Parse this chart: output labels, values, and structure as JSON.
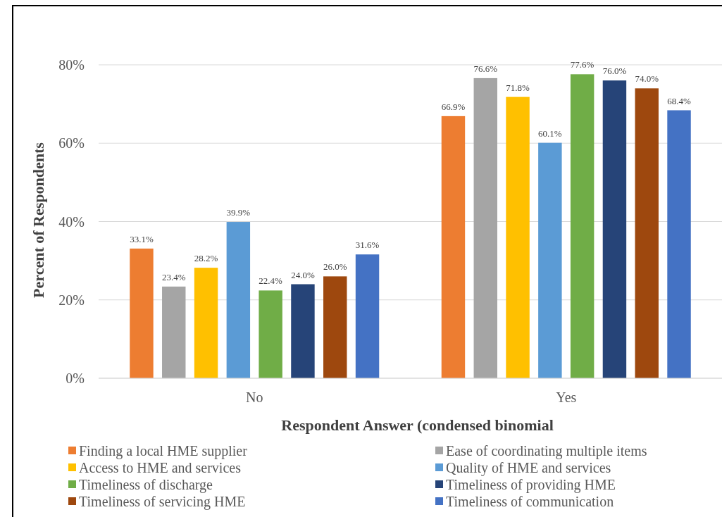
{
  "chart_data": {
    "type": "bar",
    "xlabel": "Respondent Answer (condensed binomial",
    "ylabel": "Percent of Respondents",
    "categories": [
      "No",
      "Yes"
    ],
    "ylim": [
      0,
      80
    ],
    "yticks": [
      {
        "value": 0,
        "label": "0%"
      },
      {
        "value": 20,
        "label": "20%"
      },
      {
        "value": 40,
        "label": "40%"
      },
      {
        "value": 60,
        "label": "60%"
      },
      {
        "value": 80,
        "label": "80%"
      }
    ],
    "grid": "y",
    "legend": "bottom",
    "series": [
      {
        "name": "Finding a local HME supplier",
        "color": "#ed7d31",
        "values": [
          33.1,
          66.9
        ],
        "value_labels": [
          "33.1%",
          "66.9%"
        ]
      },
      {
        "name": "Ease of coordinating multiple items",
        "color": "#a5a5a5",
        "values": [
          23.4,
          76.6
        ],
        "value_labels": [
          "23.4%",
          "76.6%"
        ]
      },
      {
        "name": "Access to HME and services",
        "color": "#ffc000",
        "values": [
          28.2,
          71.8
        ],
        "value_labels": [
          "28.2%",
          "71.8%"
        ]
      },
      {
        "name": "Quality of HME and services",
        "color": "#5b9bd5",
        "values": [
          39.9,
          60.1
        ],
        "value_labels": [
          "39.9%",
          "60.1%"
        ]
      },
      {
        "name": "Timeliness of discharge",
        "color": "#70ad47",
        "values": [
          22.4,
          77.6
        ],
        "value_labels": [
          "22.4%",
          "77.6%"
        ]
      },
      {
        "name": "Timeliness of providing HME",
        "color": "#264478",
        "values": [
          24.0,
          76.0
        ],
        "value_labels": [
          "24.0%",
          "76.0%"
        ]
      },
      {
        "name": "Timeliness of servicing HME",
        "color": "#9e480e",
        "values": [
          26.0,
          74.0
        ],
        "value_labels": [
          "26.0%",
          "74.0%"
        ]
      },
      {
        "name": "Timeliness of communication",
        "color": "#4472c4",
        "values": [
          31.6,
          68.4
        ],
        "value_labels": [
          "31.6%",
          "68.4%"
        ]
      }
    ]
  }
}
